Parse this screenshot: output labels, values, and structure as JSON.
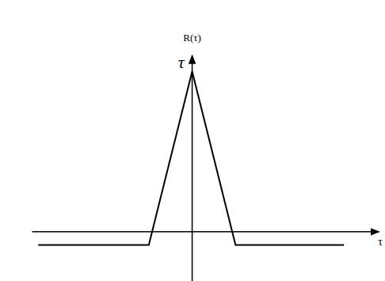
{
  "chart_data": {
    "type": "line",
    "y_label": "R(τ)",
    "x_label": "τ",
    "annotations": [
      {
        "text": "τ",
        "x": 0,
        "y": 1
      }
    ],
    "x": [
      -3.55,
      -1,
      0,
      1,
      3.5
    ],
    "series": [
      {
        "values": [
          -0.085,
          -0.085,
          1,
          -0.085,
          -0.085
        ],
        "color": "#000000",
        "line_style": "solid"
      }
    ],
    "xlim": [
      -3.7,
      4.3
    ],
    "ylim": [
      -0.31,
      1.1
    ],
    "tick_labels": false
  }
}
